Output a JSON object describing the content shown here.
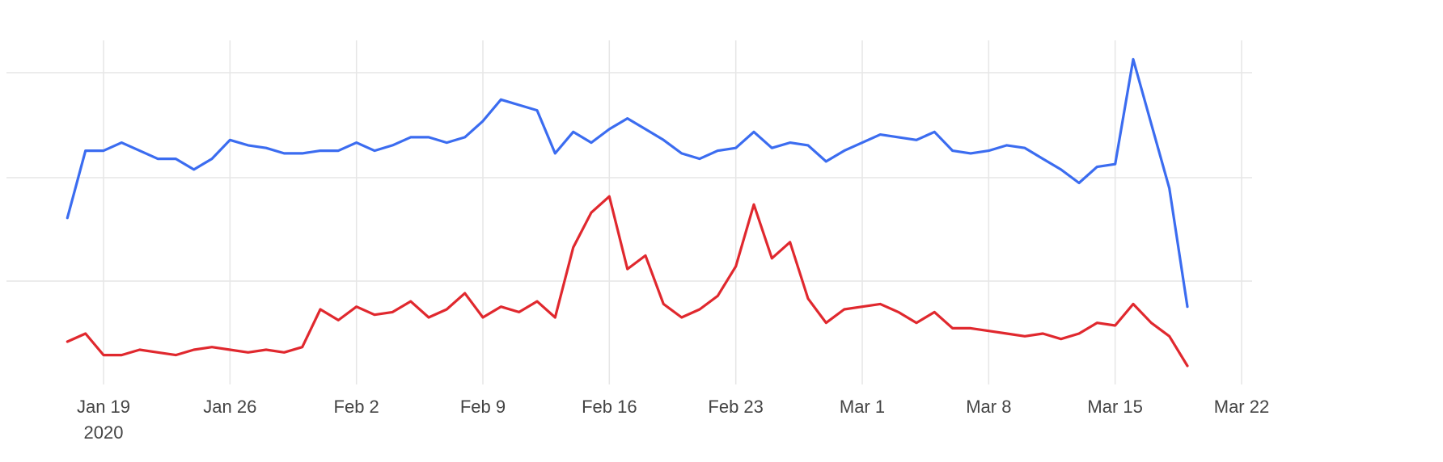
{
  "chart_data": {
    "type": "line",
    "title": "",
    "xlabel": "",
    "ylabel": "",
    "x_ticks": [
      {
        "date": "2020-01-19",
        "label": "Jan 19",
        "sublabel": "2020"
      },
      {
        "date": "2020-01-26",
        "label": "Jan 26"
      },
      {
        "date": "2020-02-02",
        "label": "Feb 2"
      },
      {
        "date": "2020-02-09",
        "label": "Feb 9"
      },
      {
        "date": "2020-02-16",
        "label": "Feb 16"
      },
      {
        "date": "2020-02-23",
        "label": "Feb 23"
      },
      {
        "date": "2020-03-01",
        "label": "Mar 1"
      },
      {
        "date": "2020-03-08",
        "label": "Mar 8"
      },
      {
        "date": "2020-03-15",
        "label": "Mar 15"
      },
      {
        "date": "2020-03-22",
        "label": "Mar 22"
      }
    ],
    "xlim": [
      "2020-01-15",
      "2020-03-22"
    ],
    "ylim": [
      0,
      100
    ],
    "y_gridlines": [
      0,
      33.3,
      66.7,
      100
    ],
    "y_tick_labels_shown": false,
    "grid": true,
    "legend": "none",
    "series": [
      {
        "color": "#3b6cf0",
        "x": [
          "2020-01-17",
          "2020-01-18",
          "2020-01-19",
          "2020-01-20",
          "2020-01-21",
          "2020-01-22",
          "2020-01-23",
          "2020-01-24",
          "2020-01-25",
          "2020-01-26",
          "2020-01-27",
          "2020-01-28",
          "2020-01-29",
          "2020-01-30",
          "2020-01-31",
          "2020-02-01",
          "2020-02-02",
          "2020-02-03",
          "2020-02-04",
          "2020-02-05",
          "2020-02-06",
          "2020-02-07",
          "2020-02-08",
          "2020-02-09",
          "2020-02-10",
          "2020-02-11",
          "2020-02-12",
          "2020-02-13",
          "2020-02-14",
          "2020-02-15",
          "2020-02-16",
          "2020-02-17",
          "2020-02-18",
          "2020-02-19",
          "2020-02-20",
          "2020-02-21",
          "2020-02-22",
          "2020-02-23",
          "2020-02-24",
          "2020-02-25",
          "2020-02-26",
          "2020-02-27",
          "2020-02-28",
          "2020-02-29",
          "2020-03-01",
          "2020-03-02",
          "2020-03-03",
          "2020-03-04",
          "2020-03-05",
          "2020-03-06",
          "2020-03-07",
          "2020-03-08",
          "2020-03-09",
          "2020-03-10",
          "2020-03-11",
          "2020-03-12",
          "2020-03-13",
          "2020-03-14",
          "2020-03-15",
          "2020-03-16",
          "2020-03-17",
          "2020-03-18",
          "2020-03-19"
        ],
        "values": [
          46,
          71,
          71,
          74,
          71,
          68,
          68,
          64,
          68,
          75,
          73,
          72,
          70,
          70,
          71,
          71,
          74,
          71,
          73,
          76,
          76,
          74,
          76,
          82,
          90,
          88,
          86,
          70,
          78,
          74,
          79,
          83,
          79,
          75,
          70,
          68,
          71,
          72,
          78,
          72,
          74,
          73,
          67,
          71,
          74,
          77,
          76,
          75,
          78,
          71,
          70,
          71,
          73,
          72,
          68,
          64,
          59,
          65,
          66,
          105,
          81,
          57,
          13
        ]
      },
      {
        "color": "#e0282e",
        "x": [
          "2020-01-17",
          "2020-01-18",
          "2020-01-19",
          "2020-01-20",
          "2020-01-21",
          "2020-01-22",
          "2020-01-23",
          "2020-01-24",
          "2020-01-25",
          "2020-01-26",
          "2020-01-27",
          "2020-01-28",
          "2020-01-29",
          "2020-01-30",
          "2020-01-31",
          "2020-02-01",
          "2020-02-02",
          "2020-02-03",
          "2020-02-04",
          "2020-02-05",
          "2020-02-06",
          "2020-02-07",
          "2020-02-08",
          "2020-02-09",
          "2020-02-10",
          "2020-02-11",
          "2020-02-12",
          "2020-02-13",
          "2020-02-14",
          "2020-02-15",
          "2020-02-16",
          "2020-02-17",
          "2020-02-18",
          "2020-02-19",
          "2020-02-20",
          "2020-02-21",
          "2020-02-22",
          "2020-02-23",
          "2020-02-24",
          "2020-02-25",
          "2020-02-26",
          "2020-02-27",
          "2020-02-28",
          "2020-02-29",
          "2020-03-01",
          "2020-03-02",
          "2020-03-03",
          "2020-03-04",
          "2020-03-05",
          "2020-03-06",
          "2020-03-07",
          "2020-03-08",
          "2020-03-09",
          "2020-03-10",
          "2020-03-11",
          "2020-03-12",
          "2020-03-13",
          "2020-03-14",
          "2020-03-15",
          "2020-03-16",
          "2020-03-17",
          "2020-03-18",
          "2020-03-19"
        ],
        "values": [
          0,
          3,
          -5,
          -5,
          -3,
          -4,
          -5,
          -3,
          -2,
          -3,
          -4,
          -3,
          -4,
          -2,
          12,
          8,
          13,
          10,
          11,
          15,
          9,
          12,
          18,
          9,
          13,
          11,
          15,
          9,
          35,
          48,
          54,
          27,
          32,
          14,
          9,
          12,
          17,
          28,
          51,
          31,
          37,
          16,
          7,
          12,
          13,
          14,
          11,
          7,
          11,
          5,
          5,
          4,
          3,
          2,
          3,
          1,
          3,
          7,
          6,
          14,
          7,
          2,
          -9
        ]
      }
    ]
  }
}
